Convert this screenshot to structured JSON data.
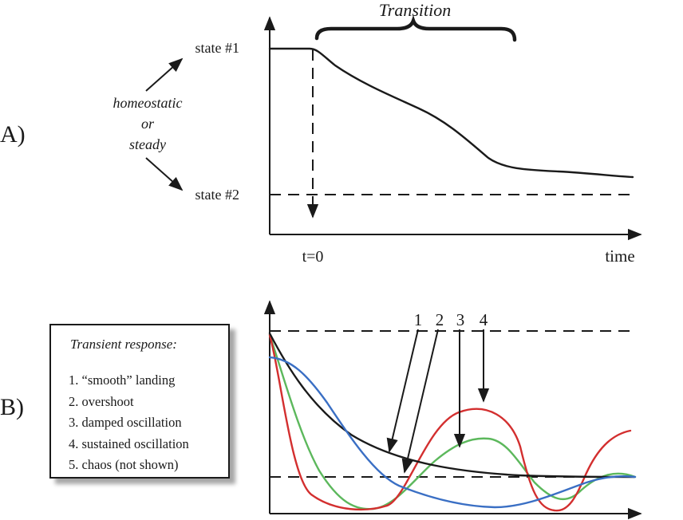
{
  "panel_a": {
    "panel_label": "A)",
    "title": "Transition",
    "state1": "state #1",
    "state2": "state #2",
    "side_labels": [
      "homeostatic",
      "or",
      "steady"
    ],
    "t0_label": "t=0",
    "x_label": "time"
  },
  "panel_b": {
    "panel_label": "B)",
    "curve_numbers": [
      "1",
      "2",
      "3",
      "4"
    ],
    "legend_title": "Transient response:",
    "legend_items": [
      "1.  “smooth” landing",
      "2.  overshoot",
      "3.  damped oscillation",
      "4.  sustained oscillation",
      "5.  chaos (not shown)"
    ],
    "colors": {
      "smooth": "#1a1a1a",
      "overshoot": "#3a6fc4",
      "damped": "#5cb85c",
      "sustained": "#d32f2f"
    }
  }
}
